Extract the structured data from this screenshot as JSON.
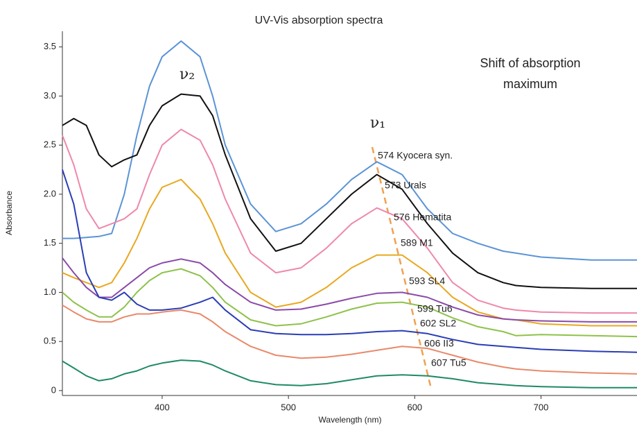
{
  "chart_data": {
    "type": "line",
    "title": "UV-Vis absorption spectra",
    "x_label": "Wavelength (nm)",
    "y_label": "Absorbance",
    "annotation_lines": [
      "Shift of absorption",
      "maximum"
    ],
    "peak_labels": [
      "ν₂",
      "ν₁"
    ],
    "xlim": [
      321,
      776
    ],
    "ylim": [
      -0.05,
      3.66
    ],
    "xticks": [
      400,
      500,
      600,
      700
    ],
    "yticks": [
      0,
      0.5,
      {
        "value": 1,
        "label": "1.0"
      },
      1.5,
      {
        "value": 2,
        "label": "2.0"
      },
      2.5,
      {
        "value": 3,
        "label": "3.0"
      },
      3.5
    ],
    "grid": false,
    "x": [
      321,
      330,
      340,
      350,
      360,
      370,
      380,
      390,
      400,
      415,
      430,
      440,
      450,
      470,
      490,
      510,
      530,
      550,
      570,
      590,
      610,
      630,
      650,
      670,
      680,
      700,
      740,
      776
    ],
    "series": [
      {
        "name": "574 Kyocera syn.",
        "color": "#5b93d6",
        "values": [
          1.55,
          1.55,
          1.56,
          1.57,
          1.6,
          2.0,
          2.6,
          3.1,
          3.4,
          3.56,
          3.4,
          3.0,
          2.5,
          1.9,
          1.62,
          1.7,
          1.9,
          2.15,
          2.33,
          2.2,
          1.85,
          1.6,
          1.5,
          1.42,
          1.4,
          1.36,
          1.33,
          1.33
        ]
      },
      {
        "name": "573 Urals",
        "color": "#111111",
        "values": [
          2.7,
          2.77,
          2.7,
          2.4,
          2.28,
          2.35,
          2.4,
          2.7,
          2.9,
          3.02,
          3.0,
          2.8,
          2.4,
          1.75,
          1.42,
          1.5,
          1.75,
          2.0,
          2.2,
          2.05,
          1.7,
          1.4,
          1.2,
          1.1,
          1.07,
          1.05,
          1.04,
          1.04
        ]
      },
      {
        "name": "576 Hematita",
        "color": "#ee88aa",
        "values": [
          2.6,
          2.3,
          1.85,
          1.65,
          1.7,
          1.75,
          1.85,
          2.2,
          2.5,
          2.66,
          2.55,
          2.3,
          1.95,
          1.4,
          1.2,
          1.25,
          1.45,
          1.7,
          1.86,
          1.75,
          1.45,
          1.1,
          0.92,
          0.84,
          0.82,
          0.8,
          0.79,
          0.79
        ]
      },
      {
        "name": "589 M1",
        "color": "#e8a820",
        "values": [
          1.2,
          1.15,
          1.1,
          1.05,
          1.1,
          1.3,
          1.55,
          1.85,
          2.07,
          2.15,
          1.95,
          1.7,
          1.4,
          1.0,
          0.85,
          0.9,
          1.05,
          1.25,
          1.38,
          1.38,
          1.2,
          0.95,
          0.8,
          0.73,
          0.72,
          0.68,
          0.66,
          0.66
        ]
      },
      {
        "name": "593 SL4",
        "color": "#8a4aa8",
        "values": [
          1.35,
          1.2,
          1.05,
          0.95,
          0.95,
          1.05,
          1.15,
          1.25,
          1.3,
          1.34,
          1.3,
          1.2,
          1.08,
          0.9,
          0.82,
          0.83,
          0.88,
          0.94,
          0.99,
          1.0,
          0.95,
          0.85,
          0.77,
          0.73,
          0.72,
          0.71,
          0.7,
          0.7
        ]
      },
      {
        "name": "599 Tu6",
        "color": "#8ec24a",
        "values": [
          1.0,
          0.9,
          0.82,
          0.75,
          0.75,
          0.85,
          1.0,
          1.12,
          1.2,
          1.24,
          1.17,
          1.05,
          0.9,
          0.72,
          0.66,
          0.68,
          0.75,
          0.83,
          0.89,
          0.9,
          0.85,
          0.74,
          0.65,
          0.6,
          0.56,
          0.57,
          0.56,
          0.55
        ]
      },
      {
        "name": "602 SL2",
        "color": "#2a3db5",
        "values": [
          2.25,
          1.9,
          1.2,
          0.95,
          0.92,
          1.0,
          0.88,
          0.82,
          0.82,
          0.84,
          0.9,
          0.95,
          0.82,
          0.62,
          0.58,
          0.57,
          0.57,
          0.58,
          0.6,
          0.61,
          0.58,
          0.52,
          0.47,
          0.45,
          0.44,
          0.42,
          0.4,
          0.39
        ]
      },
      {
        "name": "606 II3",
        "color": "#e8896a",
        "values": [
          0.87,
          0.8,
          0.73,
          0.7,
          0.7,
          0.75,
          0.78,
          0.78,
          0.8,
          0.82,
          0.78,
          0.7,
          0.6,
          0.45,
          0.36,
          0.33,
          0.34,
          0.37,
          0.41,
          0.45,
          0.43,
          0.36,
          0.29,
          0.24,
          0.22,
          0.2,
          0.18,
          0.17
        ]
      },
      {
        "name": "607 Tu5",
        "color": "#1e8a64",
        "values": [
          0.3,
          0.23,
          0.15,
          0.1,
          0.12,
          0.17,
          0.2,
          0.25,
          0.28,
          0.31,
          0.3,
          0.26,
          0.2,
          0.1,
          0.06,
          0.05,
          0.07,
          0.11,
          0.15,
          0.16,
          0.15,
          0.12,
          0.08,
          0.06,
          0.05,
          0.04,
          0.03,
          0.03
        ]
      }
    ]
  }
}
